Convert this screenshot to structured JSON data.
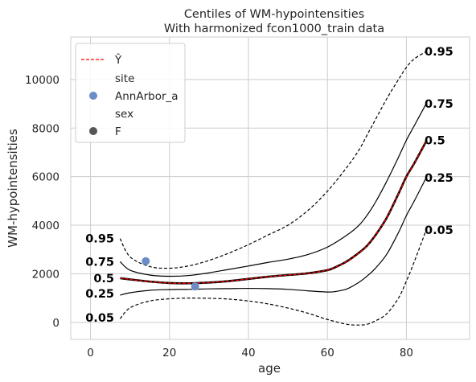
{
  "chart_data": {
    "type": "line",
    "title": "Centiles of WM-hypointensities",
    "subtitle": "With harmonized fcon1000_train data",
    "xlabel": "age",
    "ylabel": "WM-hypointensities",
    "xlim": [
      -5,
      96
    ],
    "ylim": [
      -700,
      11750
    ],
    "xticks": [
      0,
      20,
      40,
      60,
      80
    ],
    "yticks": [
      0,
      2000,
      4000,
      6000,
      8000,
      10000
    ],
    "grid": true,
    "legend_position": "top-left",
    "legend": {
      "yhat_label": "Ŷ",
      "site_header": "site",
      "site_entry": "AnnArbor_a",
      "sex_header": "sex",
      "sex_entry": "F"
    },
    "colors": {
      "yhat": "#ff0000",
      "centile": "#000000",
      "site_point": "#6b8cc6",
      "sex_marker": "#555555",
      "grid": "#cccccc"
    },
    "series": [
      {
        "centile": "0.05",
        "style": "dashed",
        "x": [
          7.5,
          10,
          15,
          20,
          25,
          30,
          35,
          40,
          45,
          50,
          55,
          60,
          65,
          68,
          70,
          72,
          75,
          78,
          80,
          82,
          85
        ],
        "y": [
          150,
          600,
          880,
          970,
          1000,
          990,
          960,
          880,
          760,
          590,
          380,
          120,
          -80,
          -110,
          -80,
          50,
          350,
          1000,
          1700,
          2500,
          3800
        ]
      },
      {
        "centile": "0.25",
        "style": "solid",
        "x": [
          7.5,
          10,
          15,
          20,
          25,
          30,
          35,
          40,
          45,
          50,
          55,
          60,
          62,
          65,
          68,
          70,
          72,
          75,
          78,
          80,
          82,
          85
        ],
        "y": [
          1120,
          1220,
          1320,
          1350,
          1360,
          1380,
          1390,
          1400,
          1390,
          1360,
          1300,
          1250,
          1270,
          1380,
          1650,
          1900,
          2200,
          2800,
          3700,
          4400,
          5000,
          5950
        ]
      },
      {
        "centile": "0.5",
        "style": "solid",
        "x": [
          7.5,
          10,
          15,
          20,
          25,
          30,
          35,
          40,
          45,
          50,
          55,
          60,
          62,
          65,
          68,
          70,
          72,
          75,
          78,
          80,
          82,
          85
        ],
        "y": [
          1820,
          1770,
          1680,
          1620,
          1610,
          1640,
          1700,
          1790,
          1880,
          1950,
          2020,
          2150,
          2270,
          2520,
          2870,
          3150,
          3550,
          4300,
          5300,
          6000,
          6550,
          7450
        ]
      },
      {
        "centile": "0.75",
        "style": "solid",
        "x": [
          7.5,
          10,
          15,
          20,
          25,
          30,
          35,
          40,
          45,
          50,
          55,
          60,
          65,
          68,
          70,
          72,
          75,
          78,
          80,
          82,
          85
        ],
        "y": [
          2500,
          2150,
          1950,
          1900,
          1930,
          2040,
          2180,
          2320,
          2470,
          2600,
          2790,
          3100,
          3600,
          4000,
          4400,
          4900,
          5800,
          6800,
          7500,
          8100,
          9000
        ]
      },
      {
        "centile": "0.95",
        "style": "dashed",
        "x": [
          7.5,
          10,
          15,
          20,
          25,
          30,
          35,
          40,
          45,
          50,
          55,
          60,
          65,
          68,
          70,
          72,
          75,
          78,
          80,
          82,
          85
        ],
        "y": [
          3450,
          2700,
          2300,
          2230,
          2330,
          2550,
          2850,
          3200,
          3600,
          4000,
          4600,
          5400,
          6400,
          7100,
          7700,
          8300,
          9200,
          10000,
          10500,
          10850,
          11150
        ]
      },
      {
        "centile": "Ŷ",
        "style": "dashed-red",
        "x": [
          7.5,
          10,
          15,
          20,
          25,
          30,
          35,
          40,
          45,
          50,
          55,
          60,
          62,
          65,
          68,
          70,
          72,
          75,
          78,
          80,
          82,
          85
        ],
        "y": [
          1820,
          1770,
          1680,
          1620,
          1610,
          1640,
          1700,
          1790,
          1880,
          1950,
          2020,
          2150,
          2270,
          2520,
          2870,
          3150,
          3550,
          4300,
          5300,
          6000,
          6550,
          7450
        ]
      }
    ],
    "points": [
      {
        "x": 14,
        "y": 2520
      },
      {
        "x": 26.5,
        "y": 1480
      }
    ],
    "left_labels": [
      {
        "text": "0.95",
        "y": 3450
      },
      {
        "text": "0.75",
        "y": 2500
      },
      {
        "text": "0.5",
        "y": 1820
      },
      {
        "text": "0.25",
        "y": 1180
      },
      {
        "text": "0.05",
        "y": 200
      }
    ],
    "right_labels": [
      {
        "text": "0.95",
        "y": 11150
      },
      {
        "text": "0.75",
        "y": 9000
      },
      {
        "text": "0.5",
        "y": 7500
      },
      {
        "text": "0.25",
        "y": 5950
      },
      {
        "text": "0.05",
        "y": 3800
      }
    ]
  }
}
